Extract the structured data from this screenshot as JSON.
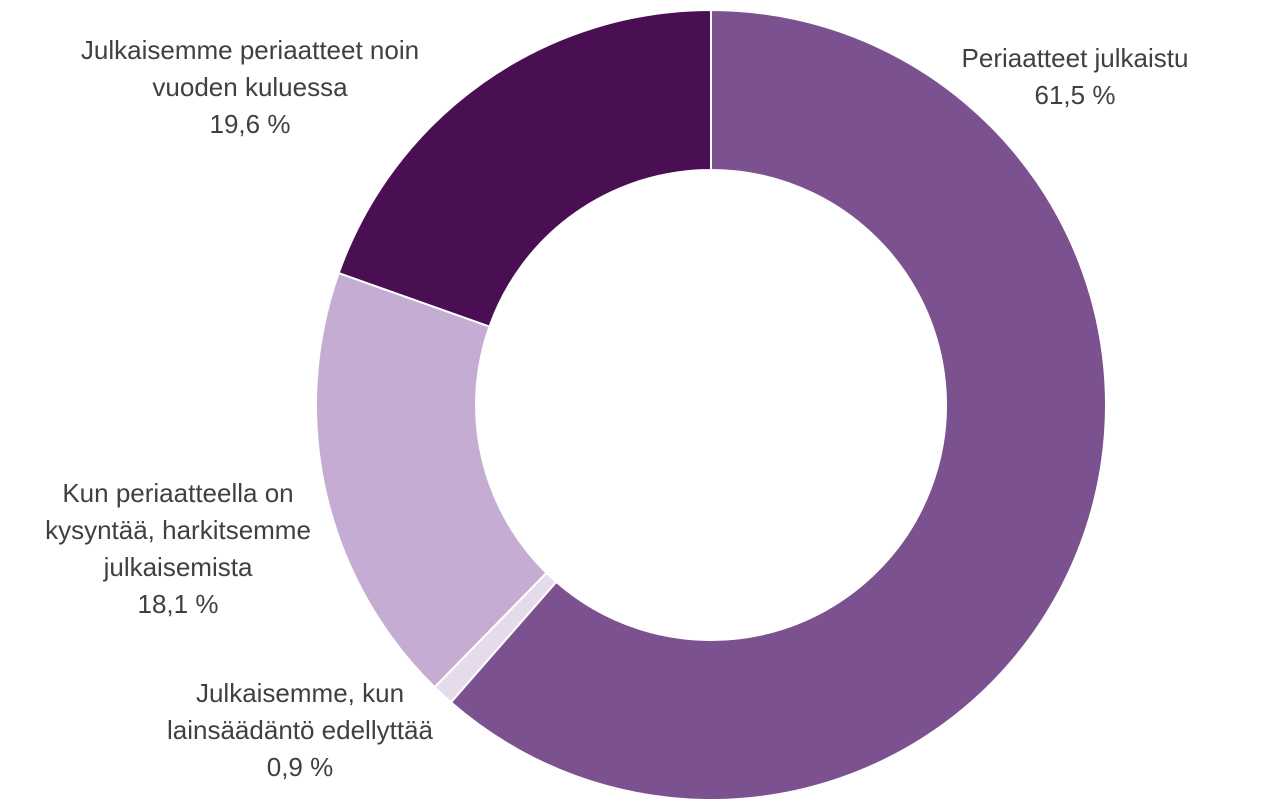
{
  "chart_data": {
    "type": "donut",
    "categories": [
      "Periaatteet julkaistu",
      "Julkaisemme, kun lainsäädäntö edellyttää",
      "Kun periaatteella on kysyntää, harkitsemme julkaisemista",
      "Julkaisemme periaatteet noin vuoden kuluessa"
    ],
    "values": [
      61.5,
      0.9,
      18.1,
      19.6
    ],
    "value_labels": [
      "61,5 %",
      "0,9 %",
      "18,1 %",
      "19,6 %"
    ],
    "colors": [
      "#7b518f",
      "#e6dbea",
      "#c4acd3",
      "#4a0e52"
    ]
  }
}
